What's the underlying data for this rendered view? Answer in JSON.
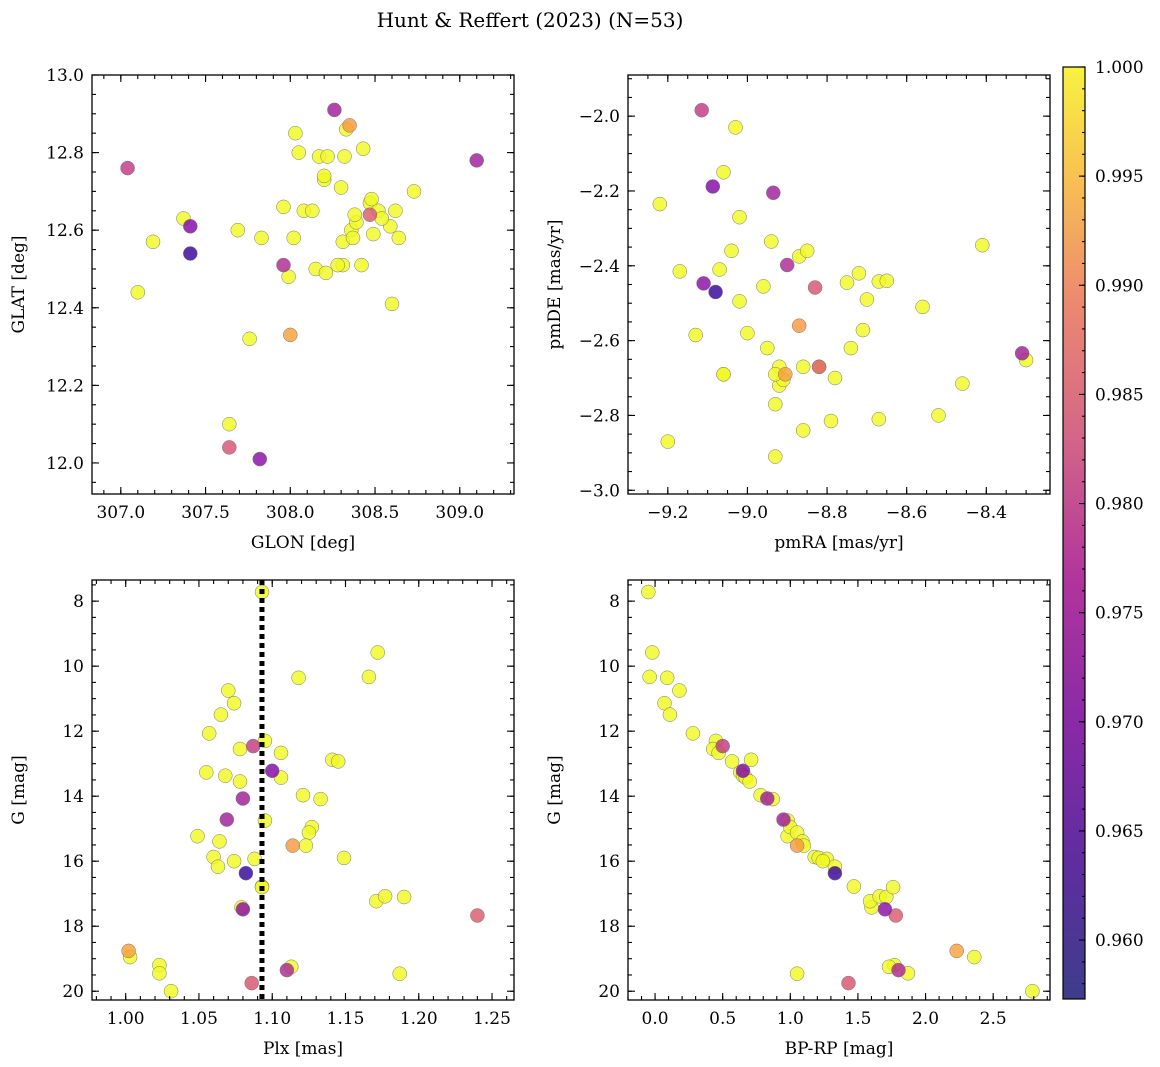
{
  "chart_data": {
    "type": "scatter",
    "title": "Hunt & Reffert (2023) (N=53)",
    "colorbar": {
      "cmap": "plasma",
      "range": [
        0.9573,
        1.0
      ],
      "ticks": [
        0.96,
        0.965,
        0.97,
        0.975,
        0.98,
        0.985,
        0.99,
        0.995,
        1.0
      ],
      "tick_labels": [
        "0.960",
        "0.965",
        "0.970",
        "0.975",
        "0.980",
        "0.985",
        "0.990",
        "0.995",
        "1.000"
      ]
    },
    "panels": [
      {
        "id": "pos",
        "xlabel": "GLON [deg]",
        "ylabel": "GLAT [deg]",
        "xlim": [
          306.83,
          309.32
        ],
        "ylim": [
          11.92,
          13.0
        ],
        "xticks": [
          307.0,
          307.5,
          308.0,
          308.5,
          309.0
        ],
        "xtick_labels": [
          "307.0",
          "307.5",
          "308.0",
          "308.5",
          "309.0"
        ],
        "yticks": [
          12.0,
          12.2,
          12.4,
          12.6,
          12.8,
          13.0
        ],
        "ytick_labels": [
          "12.0",
          "12.2",
          "12.4",
          "12.6",
          "12.8",
          "13.0"
        ],
        "xminor": 0.1,
        "yminor": 0.05
      },
      {
        "id": "pm",
        "xlabel": "pmRA [mas/yr]",
        "ylabel": "pmDE [mas/yr]",
        "xlim": [
          -9.3,
          -8.24
        ],
        "ylim": [
          -3.01,
          -1.89
        ],
        "xticks": [
          -9.2,
          -9.0,
          -8.8,
          -8.6,
          -8.4
        ],
        "xtick_labels": [
          "−9.2",
          "−9.0",
          "−8.8",
          "−8.6",
          "−8.4"
        ],
        "yticks": [
          -3.0,
          -2.8,
          -2.6,
          -2.4,
          -2.2,
          -2.0
        ],
        "ytick_labels": [
          "−3.0",
          "−2.8",
          "−2.6",
          "−2.4",
          "−2.2",
          "−2.0"
        ],
        "xminor": 0.05,
        "yminor": 0.05
      },
      {
        "id": "plx",
        "xlabel": "Plx [mas]",
        "ylabel": "G [mag]",
        "xlim": [
          0.977,
          1.265
        ],
        "ylim": [
          20.27,
          7.35
        ],
        "xticks": [
          1.0,
          1.05,
          1.1,
          1.15,
          1.2,
          1.25
        ],
        "xtick_labels": [
          "1.00",
          "1.05",
          "1.10",
          "1.15",
          "1.20",
          "1.25"
        ],
        "yticks": [
          8,
          10,
          12,
          14,
          16,
          18,
          20
        ],
        "ytick_labels": [
          "8",
          "10",
          "12",
          "14",
          "16",
          "18",
          "20"
        ],
        "xminor": 0.01,
        "yminor": 0.5,
        "vline": 1.093
      },
      {
        "id": "cmd",
        "xlabel": "BP-RP [mag]",
        "ylabel": "G [mag]",
        "xlim": [
          -0.2,
          2.92
        ],
        "ylim": [
          20.27,
          7.35
        ],
        "xticks": [
          0.0,
          0.5,
          1.0,
          1.5,
          2.0,
          2.5
        ],
        "xtick_labels": [
          "0.0",
          "0.5",
          "1.0",
          "1.5",
          "2.0",
          "2.5"
        ],
        "yticks": [
          8,
          10,
          12,
          14,
          16,
          18,
          20
        ],
        "ytick_labels": [
          "8",
          "10",
          "12",
          "14",
          "16",
          "18",
          "20"
        ],
        "xminor": 0.1,
        "yminor": 0.5
      }
    ],
    "columns": [
      "glon",
      "glat",
      "pmra",
      "pmde",
      "plx",
      "gmag",
      "bprp",
      "prob"
    ],
    "stars": [
      [
        309.1,
        12.78,
        -8.31,
        -2.634,
        1.08,
        14.07,
        0.83,
        0.97
      ],
      [
        307.04,
        12.76,
        -9.115,
        -1.984,
        1.087,
        12.46,
        0.5,
        0.975
      ],
      [
        308.26,
        12.91,
        -8.935,
        -2.205,
        1.069,
        14.72,
        0.95,
        0.97
      ],
      [
        307.41,
        12.54,
        -9.08,
        -2.47,
        1.082,
        16.37,
        1.33,
        0.9575
      ],
      [
        307.41,
        12.61,
        -9.087,
        -2.188,
        1.1,
        13.22,
        0.65,
        0.966
      ],
      [
        307.82,
        12.01,
        -9.11,
        -2.447,
        1.08,
        17.48,
        1.7,
        0.967
      ],
      [
        307.96,
        12.51,
        -8.9,
        -2.398,
        1.11,
        19.35,
        1.8,
        0.972
      ],
      [
        307.64,
        12.04,
        -8.83,
        -2.458,
        1.086,
        19.75,
        1.43,
        0.979
      ],
      [
        308.35,
        12.87,
        -8.87,
        -2.56,
        1.114,
        15.52,
        1.05,
        0.989
      ],
      [
        308.0,
        12.33,
        -8.905,
        -2.69,
        1.002,
        18.76,
        2.23,
        0.99
      ],
      [
        308.47,
        12.64,
        -8.82,
        -2.67,
        1.24,
        17.67,
        1.78,
        0.98
      ],
      [
        307.37,
        12.63,
        -9.22,
        -2.235,
        1.093,
        7.72,
        -0.05,
        1.0
      ],
      [
        307.1,
        12.44,
        -9.13,
        -2.585,
        1.172,
        9.58,
        -0.02,
        1.0
      ],
      [
        307.19,
        12.57,
        -9.17,
        -2.415,
        1.166,
        10.33,
        -0.04,
        1.0
      ],
      [
        307.64,
        12.1,
        -9.2,
        -2.87,
        1.118,
        10.36,
        0.09,
        1.0
      ],
      [
        307.69,
        12.6,
        -9.07,
        -2.41,
        1.07,
        10.75,
        0.18,
        1.0
      ],
      [
        307.76,
        12.32,
        -9.06,
        -2.69,
        1.074,
        11.14,
        0.07,
        1.0
      ],
      [
        307.83,
        12.58,
        -9.03,
        -2.03,
        1.065,
        11.49,
        0.11,
        1.0
      ],
      [
        307.96,
        12.66,
        -9.06,
        -2.15,
        1.057,
        12.07,
        0.28,
        1.0
      ],
      [
        307.99,
        12.48,
        -9.02,
        -2.27,
        1.095,
        12.3,
        0.45,
        1.0
      ],
      [
        308.02,
        12.58,
        -9.04,
        -2.36,
        1.078,
        12.55,
        0.43,
        1.0
      ],
      [
        308.03,
        12.85,
        -9.02,
        -2.495,
        1.106,
        12.67,
        0.47,
        1.0
      ],
      [
        308.05,
        12.8,
        -9.0,
        -2.58,
        1.141,
        12.88,
        0.71,
        1.0
      ],
      [
        308.08,
        12.65,
        -8.96,
        -2.455,
        1.145,
        12.93,
        0.57,
        1.0
      ],
      [
        308.13,
        12.65,
        -8.95,
        -2.62,
        1.055,
        13.27,
        0.63,
        1.0
      ],
      [
        308.15,
        12.5,
        -8.94,
        -2.335,
        1.068,
        13.37,
        0.65,
        1.0
      ],
      [
        308.17,
        12.79,
        -8.92,
        -2.67,
        1.106,
        13.43,
        0.67,
        1.0
      ],
      [
        308.2,
        12.73,
        -8.93,
        -2.77,
        1.078,
        13.55,
        0.7,
        1.0
      ],
      [
        308.21,
        12.49,
        -8.92,
        -2.72,
        1.121,
        13.97,
        0.78,
        1.0
      ],
      [
        308.22,
        12.79,
        -8.93,
        -2.91,
        1.133,
        14.09,
        0.87,
        1.0
      ],
      [
        308.2,
        12.74,
        -8.91,
        -2.705,
        1.095,
        14.75,
        0.98,
        1.0
      ],
      [
        308.3,
        12.71,
        -8.87,
        -2.375,
        1.049,
        15.23,
        0.98,
        1.0
      ],
      [
        308.31,
        12.57,
        -8.86,
        -2.84,
        1.127,
        14.95,
        1.0,
        1.0
      ],
      [
        308.31,
        12.51,
        -8.85,
        -2.36,
        1.125,
        15.12,
        1.05,
        1.0
      ],
      [
        308.32,
        12.79,
        -8.86,
        -2.67,
        1.064,
        15.39,
        1.09,
        1.0
      ],
      [
        308.33,
        12.86,
        -8.82,
        -2.67,
        1.123,
        15.52,
        1.1,
        1.0
      ],
      [
        308.36,
        12.6,
        -8.79,
        -2.815,
        1.06,
        15.87,
        1.18,
        1.0
      ],
      [
        308.37,
        12.58,
        -8.78,
        -2.7,
        1.149,
        15.9,
        1.21,
        1.0
      ],
      [
        308.39,
        12.62,
        -8.75,
        -2.445,
        1.088,
        15.93,
        1.27,
        1.0
      ],
      [
        308.43,
        12.81,
        -8.74,
        -2.62,
        1.063,
        16.17,
        1.33,
        1.0
      ],
      [
        308.42,
        12.51,
        -8.72,
        -2.42,
        1.074,
        16.0,
        1.24,
        1.0
      ],
      [
        308.47,
        12.67,
        -8.71,
        -2.572,
        1.093,
        16.78,
        1.47,
        1.0
      ],
      [
        308.48,
        12.68,
        -8.7,
        -2.49,
        1.079,
        17.42,
        1.6,
        1.0
      ],
      [
        308.49,
        12.59,
        -8.67,
        -2.442,
        1.171,
        17.23,
        1.59,
        1.0
      ],
      [
        308.52,
        12.65,
        -8.67,
        -2.81,
        1.177,
        17.08,
        1.66,
        1.0
      ],
      [
        308.59,
        12.61,
        -8.65,
        -2.44,
        1.19,
        17.1,
        1.71,
        1.0
      ],
      [
        308.6,
        12.41,
        -8.56,
        -2.51,
        1.187,
        19.46,
        1.05,
        1.0
      ],
      [
        308.62,
        12.65,
        -8.52,
        -2.8,
        1.023,
        19.2,
        1.77,
        1.0
      ],
      [
        308.64,
        12.58,
        -8.46,
        -2.715,
        1.023,
        19.45,
        1.87,
        1.0
      ],
      [
        308.73,
        12.7,
        -8.41,
        -2.345,
        1.003,
        18.95,
        2.36,
        1.0
      ],
      [
        308.28,
        12.51,
        -8.3,
        -2.652,
        1.031,
        20.0,
        2.79,
        1.0
      ],
      [
        308.38,
        12.64,
        -9.06,
        -2.69,
        1.113,
        19.25,
        1.73,
        1.0
      ],
      [
        308.54,
        12.63,
        -8.93,
        -2.69,
        1.093,
        16.8,
        1.76,
        1.0
      ]
    ]
  }
}
